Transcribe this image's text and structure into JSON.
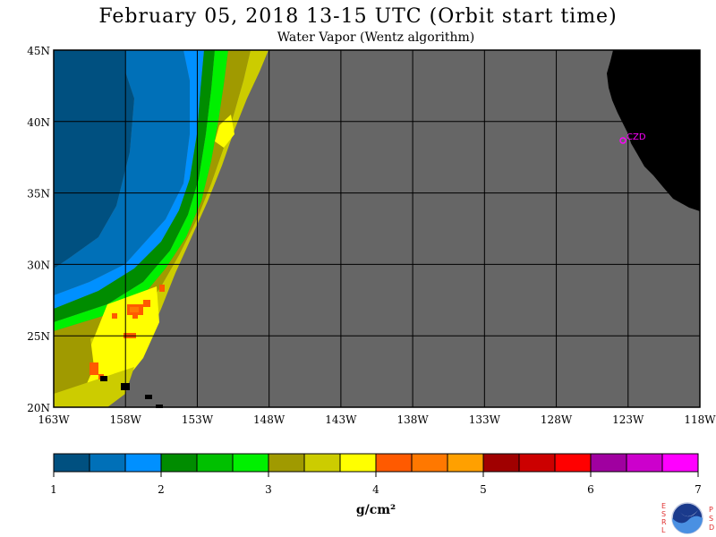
{
  "header": {
    "title": "February 05, 2018  13-15 UTC  (Orbit start time)",
    "subtitle": "Water Vapor (Wentz algorithm)"
  },
  "map": {
    "lat_labels": [
      "45N",
      "40N",
      "35N",
      "30N",
      "25N",
      "20N"
    ],
    "lat_values": [
      45,
      40,
      35,
      30,
      25,
      20
    ],
    "lon_labels": [
      "163W",
      "158W",
      "153W",
      "148W",
      "143W",
      "138W",
      "133W",
      "128W",
      "123W",
      "118W"
    ],
    "lon_values": [
      -163,
      -158,
      -153,
      -148,
      -143,
      -138,
      -133,
      -128,
      -123,
      -118
    ],
    "station_label": "CZD",
    "no_data_color": "#666666",
    "land_color": "#000000",
    "station_color": "#ff00ff"
  },
  "colorbar": {
    "colors": [
      "#005080",
      "#0070b8",
      "#0090ff",
      "#008c00",
      "#00c000",
      "#00f000",
      "#a09a00",
      "#cccc00",
      "#ffff00",
      "#ff5a00",
      "#ff7800",
      "#ffa000",
      "#a00000",
      "#cc0000",
      "#ff0000",
      "#a000a0",
      "#cc00cc",
      "#ff00ff"
    ],
    "tick_labels": [
      "1",
      "2",
      "3",
      "4",
      "5",
      "6",
      "7"
    ],
    "unit": "g/cm²"
  },
  "logo": {
    "name": "NOAA",
    "left_letters": [
      "E",
      "S",
      "R",
      "L"
    ],
    "right_letters": [
      "P",
      "S",
      "D"
    ]
  }
}
